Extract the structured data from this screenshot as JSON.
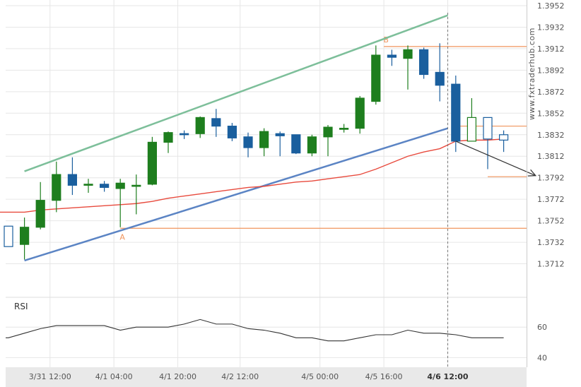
{
  "watermark": "www.fxtraderhub.com",
  "rsi_label": "RSI",
  "chart_data": {
    "type": "candlestick",
    "price_axis": {
      "min": 1.3692,
      "max": 1.3952,
      "ticks": [
        "1.3952",
        "1.3932",
        "1.3912",
        "1.3892",
        "1.3872",
        "1.3852",
        "1.3832",
        "1.3812",
        "1.3792",
        "1.3772",
        "1.3752",
        "1.3732",
        "1.3712"
      ]
    },
    "rsi_axis": {
      "min": 30,
      "max": 80,
      "ticks": [
        "60",
        "40"
      ]
    },
    "x_ticks": [
      "3/31 12:00",
      "4/1 04:00",
      "4/1 20:00",
      "4/2 12:00",
      "4/5 00:00",
      "4/5 16:00",
      "4/6 12:00"
    ],
    "highlight_x_label": "4/6 12:00",
    "candles": [
      {
        "o": 1.3747,
        "h": 1.3747,
        "l": 1.3728,
        "c": 1.3728,
        "t": "hollow-blue"
      },
      {
        "o": 1.373,
        "h": 1.3755,
        "l": 1.3716,
        "c": 1.3746,
        "t": "green"
      },
      {
        "o": 1.3746,
        "h": 1.3788,
        "l": 1.3744,
        "c": 1.3771,
        "t": "green"
      },
      {
        "o": 1.3771,
        "h": 1.3807,
        "l": 1.376,
        "c": 1.3795,
        "t": "green"
      },
      {
        "o": 1.3795,
        "h": 1.3811,
        "l": 1.3776,
        "c": 1.3785,
        "t": "blue"
      },
      {
        "o": 1.3785,
        "h": 1.3791,
        "l": 1.3778,
        "c": 1.3786,
        "t": "green"
      },
      {
        "o": 1.3786,
        "h": 1.3789,
        "l": 1.3779,
        "c": 1.3783,
        "t": "blue"
      },
      {
        "o": 1.3782,
        "h": 1.3791,
        "l": 1.3746,
        "c": 1.3787,
        "t": "green"
      },
      {
        "o": 1.3785,
        "h": 1.3795,
        "l": 1.3758,
        "c": 1.3785,
        "t": "green"
      },
      {
        "o": 1.3786,
        "h": 1.383,
        "l": 1.3785,
        "c": 1.3825,
        "t": "green"
      },
      {
        "o": 1.3825,
        "h": 1.3835,
        "l": 1.3815,
        "c": 1.3834,
        "t": "green"
      },
      {
        "o": 1.3832,
        "h": 1.3836,
        "l": 1.3828,
        "c": 1.3833,
        "t": "blue"
      },
      {
        "o": 1.3833,
        "h": 1.3849,
        "l": 1.3829,
        "c": 1.3848,
        "t": "green"
      },
      {
        "o": 1.3847,
        "h": 1.3856,
        "l": 1.383,
        "c": 1.384,
        "t": "blue"
      },
      {
        "o": 1.384,
        "h": 1.3843,
        "l": 1.3826,
        "c": 1.3829,
        "t": "blue"
      },
      {
        "o": 1.383,
        "h": 1.3834,
        "l": 1.3811,
        "c": 1.382,
        "t": "blue"
      },
      {
        "o": 1.382,
        "h": 1.3838,
        "l": 1.3812,
        "c": 1.3835,
        "t": "green"
      },
      {
        "o": 1.3833,
        "h": 1.3835,
        "l": 1.3812,
        "c": 1.3831,
        "t": "blue"
      },
      {
        "o": 1.3832,
        "h": 1.3832,
        "l": 1.3814,
        "c": 1.3815,
        "t": "blue"
      },
      {
        "o": 1.3815,
        "h": 1.3832,
        "l": 1.3812,
        "c": 1.383,
        "t": "green"
      },
      {
        "o": 1.383,
        "h": 1.3841,
        "l": 1.3812,
        "c": 1.3839,
        "t": "green"
      },
      {
        "o": 1.3838,
        "h": 1.3842,
        "l": 1.3834,
        "c": 1.3838,
        "t": "green"
      },
      {
        "o": 1.3838,
        "h": 1.3868,
        "l": 1.3833,
        "c": 1.3866,
        "t": "green"
      },
      {
        "o": 1.3863,
        "h": 1.3915,
        "l": 1.386,
        "c": 1.3906,
        "t": "green"
      },
      {
        "o": 1.3906,
        "h": 1.3911,
        "l": 1.3896,
        "c": 1.3904,
        "t": "blue"
      },
      {
        "o": 1.3903,
        "h": 1.3915,
        "l": 1.3874,
        "c": 1.3911,
        "t": "green"
      },
      {
        "o": 1.3911,
        "h": 1.3913,
        "l": 1.3884,
        "c": 1.3888,
        "t": "blue"
      },
      {
        "o": 1.389,
        "h": 1.3917,
        "l": 1.3863,
        "c": 1.3878,
        "t": "blue"
      },
      {
        "o": 1.3879,
        "h": 1.3887,
        "l": 1.3816,
        "c": 1.3826,
        "t": "blue"
      },
      {
        "o": 1.3826,
        "h": 1.3866,
        "l": 1.3826,
        "c": 1.3848,
        "t": "hollow-green"
      },
      {
        "o": 1.3848,
        "h": 1.3848,
        "l": 1.38,
        "c": 1.3828,
        "t": "hollow-blue"
      },
      {
        "o": 1.3827,
        "h": 1.3836,
        "l": 1.3816,
        "c": 1.3832,
        "t": "hollow-blue"
      }
    ],
    "moving_average": [
      1.376,
      1.376,
      1.3762,
      1.3763,
      1.3764,
      1.3765,
      1.3766,
      1.3767,
      1.3768,
      1.377,
      1.3773,
      1.3775,
      1.3777,
      1.3779,
      1.3781,
      1.3783,
      1.3784,
      1.3786,
      1.3788,
      1.3789,
      1.3791,
      1.3793,
      1.3795,
      1.38,
      1.3806,
      1.3812,
      1.3816,
      1.3819,
      1.3826,
      1.3827,
      1.3827,
      1.3828
    ],
    "rsi": [
      53,
      56,
      59,
      61,
      61,
      61,
      61,
      58,
      60,
      60,
      60,
      62,
      65,
      62,
      62,
      59,
      58,
      56,
      53,
      53,
      51,
      51,
      53,
      55,
      55,
      58,
      56,
      56,
      55,
      53,
      53,
      53
    ],
    "channel": {
      "upper": [
        {
          "i": 1,
          "p": 1.3798
        },
        {
          "i": 27.5,
          "p": 1.3943
        }
      ],
      "lower": [
        {
          "i": 1,
          "p": 1.3715
        },
        {
          "i": 27.5,
          "p": 1.3838
        }
      ]
    },
    "levels": [
      {
        "name": "A",
        "price": 1.3745,
        "from": 7,
        "label": "A"
      },
      {
        "name": "B",
        "price": 1.3914,
        "from": 23.5,
        "label": "B"
      },
      {
        "name": "channel-break",
        "price": 1.384,
        "from": 28
      },
      {
        "name": "target",
        "price": 1.3793,
        "from": 30
      }
    ],
    "forecast_arrow": {
      "from": {
        "i": 28,
        "p": 1.3826
      },
      "to": {
        "i": 33,
        "p": 1.3794
      }
    },
    "colors": {
      "green": "#1e7e1e",
      "blue": "#1a5f9e",
      "upper": "#7dbf9a",
      "lower": "#5b84c4",
      "ma": "#e84a3d",
      "level": "#f0945c",
      "rsi": "#333333",
      "arrow": "#333333",
      "grid": "#e6e6e6",
      "axisbg": "#e9e9e9"
    }
  }
}
